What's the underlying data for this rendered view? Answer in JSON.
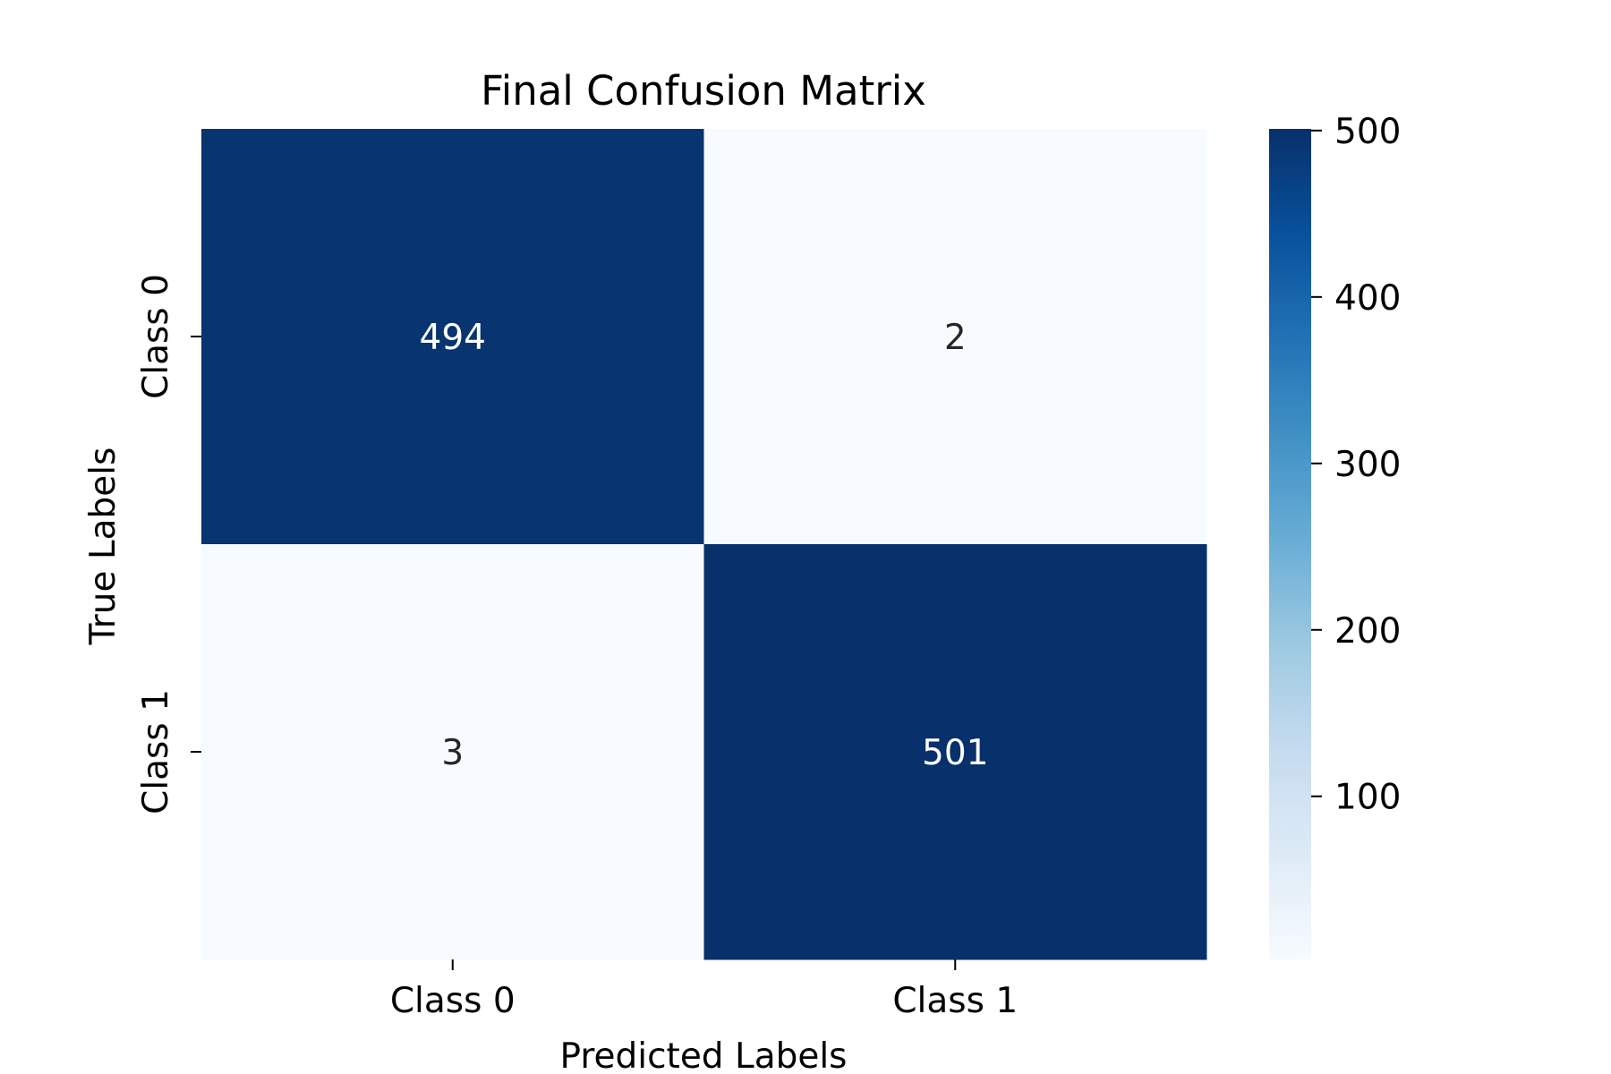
{
  "chart_data": {
    "type": "heatmap",
    "title": "Final Confusion Matrix",
    "xlabel": "Predicted Labels",
    "ylabel": "True Labels",
    "x_categories": [
      "Class 0",
      "Class 1"
    ],
    "y_categories": [
      "Class 0",
      "Class 1"
    ],
    "values": [
      [
        494,
        2
      ],
      [
        3,
        501
      ]
    ],
    "colormap": "Blues",
    "colorbar": {
      "range": [
        2,
        501
      ],
      "ticks": [
        100,
        200,
        300,
        400,
        500
      ]
    },
    "annotations": true,
    "grid": false
  }
}
